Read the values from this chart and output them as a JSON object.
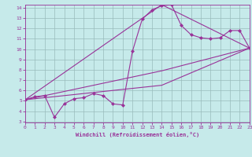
{
  "xlabel": "Windchill (Refroidissement éolien,°C)",
  "xlim": [
    0,
    23
  ],
  "ylim": [
    3,
    14
  ],
  "xticks": [
    0,
    1,
    2,
    3,
    4,
    5,
    6,
    7,
    8,
    9,
    10,
    11,
    12,
    13,
    14,
    15,
    16,
    17,
    18,
    19,
    20,
    21,
    22,
    23
  ],
  "yticks": [
    3,
    4,
    5,
    6,
    7,
    8,
    9,
    10,
    11,
    12,
    13,
    14
  ],
  "background_color": "#c6eaea",
  "line_color": "#993399",
  "grid_color": "#99bbbb",
  "series": [
    {
      "x": [
        0,
        1,
        2,
        3,
        4,
        5,
        6,
        7,
        8,
        9,
        10,
        11,
        12,
        13,
        14,
        15,
        16,
        17,
        18,
        19,
        20,
        21,
        22,
        23
      ],
      "y": [
        5.1,
        5.4,
        5.5,
        3.4,
        4.7,
        5.2,
        5.3,
        5.7,
        5.5,
        4.7,
        4.6,
        9.8,
        12.9,
        13.8,
        14.2,
        14.3,
        12.3,
        11.4,
        11.1,
        11.0,
        11.1,
        11.8,
        11.8,
        10.1
      ],
      "marker": true
    },
    {
      "x": [
        0,
        14,
        23
      ],
      "y": [
        5.1,
        14.3,
        10.1
      ],
      "marker": false
    },
    {
      "x": [
        0,
        14,
        23
      ],
      "y": [
        5.1,
        7.9,
        10.1
      ],
      "marker": false
    },
    {
      "x": [
        0,
        14,
        23
      ],
      "y": [
        5.1,
        6.5,
        10.1
      ],
      "marker": false
    }
  ]
}
